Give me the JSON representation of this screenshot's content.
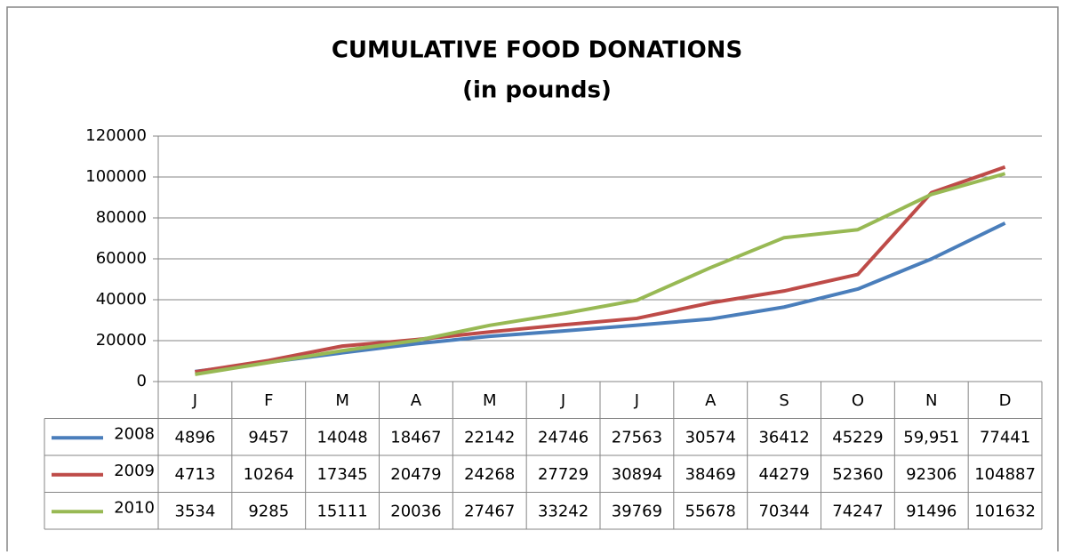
{
  "chart_data": {
    "type": "line",
    "title": "CUMULATIVE FOOD DONATIONS",
    "subtitle": "(in pounds)",
    "categories": [
      "J",
      "F",
      "M",
      "A",
      "M",
      "J",
      "J",
      "A",
      "S",
      "O",
      "N",
      "D"
    ],
    "series": [
      {
        "name": "2008",
        "color": "#4a7ebb",
        "values": [
          4896,
          9457,
          14048,
          18467,
          22142,
          24746,
          27563,
          30574,
          36412,
          45229,
          59951,
          77441
        ],
        "value_labels": [
          "4896",
          "9457",
          "14048",
          "18467",
          "22142",
          "24746",
          "27563",
          "30574",
          "36412",
          "45229",
          "59,951",
          "77441"
        ]
      },
      {
        "name": "2009",
        "color": "#be4b48",
        "values": [
          4713,
          10264,
          17345,
          20479,
          24268,
          27729,
          30894,
          38469,
          44279,
          52360,
          92306,
          104887
        ]
      },
      {
        "name": "2010",
        "color": "#98b954",
        "values": [
          3534,
          9285,
          15111,
          20036,
          27467,
          33242,
          39769,
          55678,
          70344,
          74247,
          91496,
          101632
        ]
      }
    ],
    "ylim": [
      0,
      120000
    ],
    "yticks": [
      0,
      20000,
      40000,
      60000,
      80000,
      100000,
      120000
    ],
    "grid": true
  }
}
